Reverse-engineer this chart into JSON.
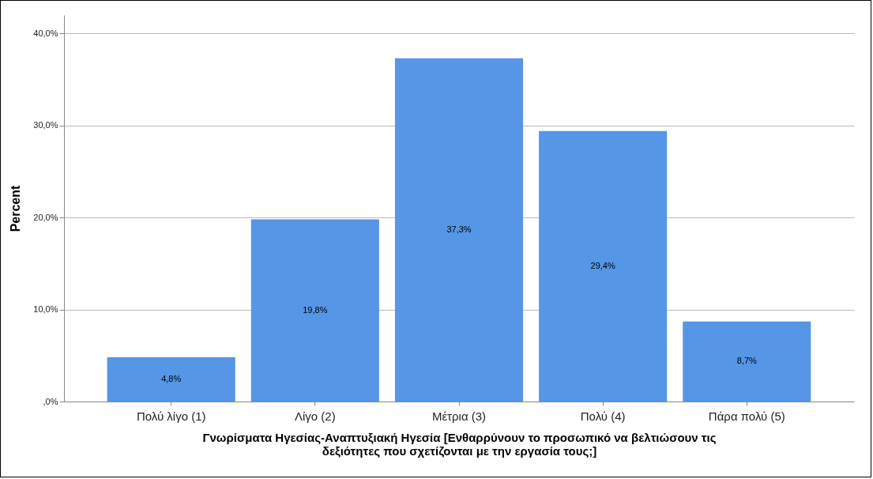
{
  "chart_data": {
    "type": "bar",
    "xlabel": "Γνωρίσματα Ηγεσίας-Αναπτυξιακή Ηγεσία [Ενθαρρύνουν το προσωπικό να βελτιώσουν τις δεξιότητες που σχετίζονται με την εργασία τους;]",
    "ylabel": "Percent",
    "categories": [
      "Πολύ λίγο (1)",
      "Λίγο (2)",
      "Μέτρια (3)",
      "Πολύ (4)",
      "Πάρα πολύ (5)"
    ],
    "values": [
      4.8,
      19.8,
      37.3,
      29.4,
      8.7
    ],
    "value_labels": [
      "4,8%",
      "19,8%",
      "37,3%",
      "29,4%",
      "8,7%"
    ],
    "color": "#5596e6",
    "ylim": [
      0,
      42
    ],
    "yticks": [
      {
        "value": 0,
        "label": ",0%"
      },
      {
        "value": 10,
        "label": "10,0%"
      },
      {
        "value": 20,
        "label": "20,0%"
      },
      {
        "value": 30,
        "label": "30,0%"
      },
      {
        "value": 40,
        "label": "40,0%"
      }
    ],
    "grid": "y"
  }
}
